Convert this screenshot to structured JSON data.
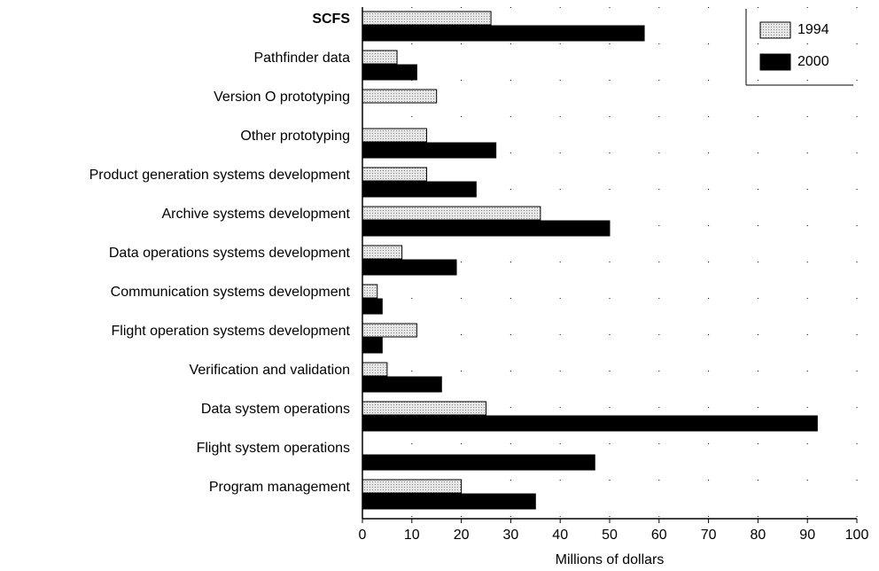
{
  "chart_data": {
    "type": "barh",
    "xlabel": "Millions of dollars",
    "categories": [
      "SCFS",
      "Pathfinder data",
      "Version O prototyping",
      "Other prototyping",
      "Product generation systems development",
      "Archive systems development",
      "Data operations systems development",
      "Communication systems development",
      "Flight operation systems development",
      "Verification and validation",
      "Data system operations",
      "Flight system operations",
      "Program management"
    ],
    "series": [
      {
        "name": "1994",
        "color": "#d9d9d9",
        "values": [
          26,
          7,
          15,
          13,
          13,
          36,
          8,
          3,
          11,
          5,
          25,
          0,
          20
        ]
      },
      {
        "name": "2000",
        "color": "#000000",
        "values": [
          57,
          11,
          0,
          27,
          23,
          50,
          19,
          4,
          4,
          16,
          92,
          47,
          35
        ]
      }
    ],
    "xlim": [
      0,
      100
    ],
    "xticks": [
      0,
      10,
      20,
      30,
      40,
      50,
      60,
      70,
      80,
      90,
      100
    ],
    "grid": true,
    "legend": "upper right"
  }
}
